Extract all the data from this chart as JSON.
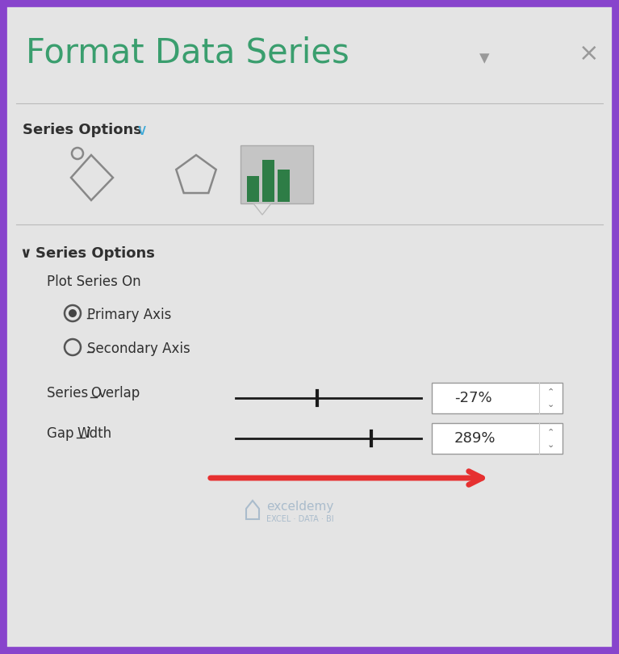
{
  "bg_color": "#e4e4e4",
  "border_purple": "#8844cc",
  "title_text": "Format Data Series",
  "title_color": "#3a9e6e",
  "title_fontsize": 30,
  "section_label_bold": "Series Options",
  "section2_bold": "Series Options",
  "plot_series_on": "Plot Series On",
  "primary_axis": "Primary Axis",
  "secondary_axis": "Secondary Axis",
  "series_overlap_label": "Series",
  "series_overlap_label2": "Overlap",
  "series_overlap_value": "-27%",
  "gap_width_label": "Gap",
  "gap_width_label2": "Width",
  "gap_width_value": "289%",
  "arrow_color": "#e63030",
  "icon_bar_color": "#2e7d46",
  "icon_bg_color": "#c8c8c8",
  "text_color": "#303030",
  "slider_color": "#1a1a1a",
  "input_box_color": "#ffffff",
  "input_border_color": "#999999",
  "watermark_text": "exceldemy",
  "watermark_subtext": "EXCEL · DATA · BI",
  "watermark_color": "#aabccc",
  "chevron_color": "#3aa8d8"
}
